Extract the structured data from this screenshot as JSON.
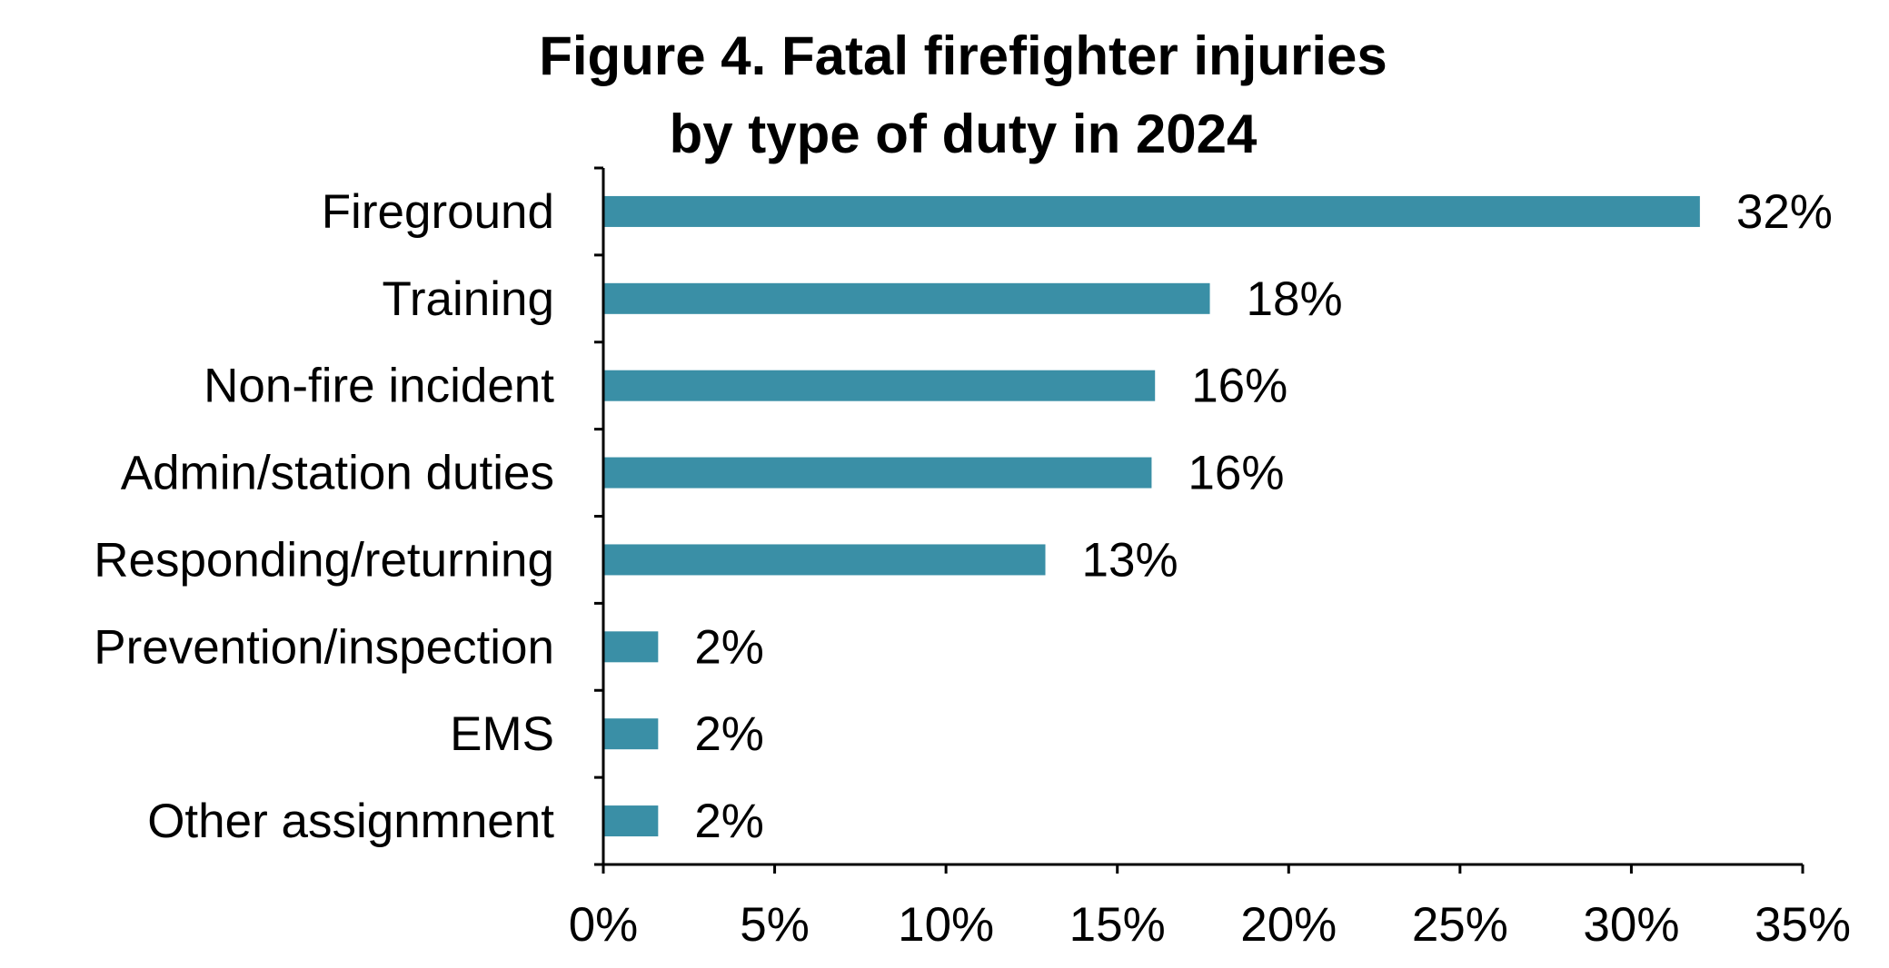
{
  "chart_data": {
    "type": "bar",
    "orientation": "horizontal",
    "title": [
      "Figure 4. Fatal firefighter injuries",
      "by type of duty in 2024"
    ],
    "categories": [
      "Fireground",
      "Training",
      "Non-fire incident",
      "Admin/station duties",
      "Responding/returning",
      "Prevention/inspection",
      "EMS",
      "Other assignmnent"
    ],
    "values": [
      32,
      17.7,
      16.1,
      16,
      12.9,
      1.6,
      1.6,
      1.6
    ],
    "value_labels": [
      "32%",
      "18%",
      "16%",
      "16%",
      "13%",
      "2%",
      "2%",
      "2%"
    ],
    "xlim": [
      0,
      35
    ],
    "xticks": [
      0,
      5,
      10,
      15,
      20,
      25,
      30,
      35
    ],
    "xtick_labels": [
      "0%",
      "5%",
      "10%",
      "15%",
      "20%",
      "25%",
      "30%",
      "35%"
    ],
    "xlabel": "",
    "ylabel": "",
    "bar_color": "#3a8fa6",
    "grid": false,
    "legend": "none"
  }
}
